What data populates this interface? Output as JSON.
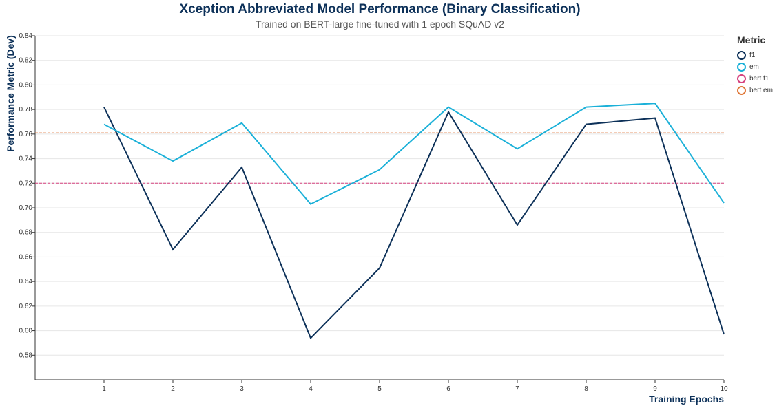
{
  "chart_data": {
    "type": "line",
    "title": "Xception Abbreviated Model Performance (Binary Classification)",
    "subtitle": "Trained on BERT-large fine-tuned with 1 epoch SQuAD v2",
    "xlabel": "Training Epochs",
    "ylabel": "Performance Metric (Dev)",
    "x": [
      1,
      2,
      3,
      4,
      5,
      6,
      7,
      8,
      9,
      10
    ],
    "xlim": [
      0,
      10
    ],
    "ylim": [
      0.56,
      0.84
    ],
    "yticks": [
      "0.58",
      "0.60",
      "0.62",
      "0.64",
      "0.66",
      "0.68",
      "0.70",
      "0.72",
      "0.74",
      "0.76",
      "0.78",
      "0.80",
      "0.82",
      "0.84"
    ],
    "grid": true,
    "legend_title": "Metric",
    "legend_position": "right",
    "series": [
      {
        "name": "f1",
        "color": "#0d3159",
        "style": "solid",
        "values": [
          0.782,
          0.666,
          0.733,
          0.594,
          0.651,
          0.778,
          0.686,
          0.768,
          0.773,
          0.597
        ]
      },
      {
        "name": "em",
        "color": "#1ab0d8",
        "style": "solid",
        "values": [
          0.768,
          0.738,
          0.769,
          0.703,
          0.731,
          0.782,
          0.748,
          0.782,
          0.785,
          0.704
        ]
      },
      {
        "name": "bert f1",
        "color": "#d6437f",
        "style": "dashed",
        "values": [
          0.72,
          0.72,
          0.72,
          0.72,
          0.72,
          0.72,
          0.72,
          0.72,
          0.72,
          0.72
        ]
      },
      {
        "name": "bert em",
        "color": "#e07a3c",
        "style": "dashed",
        "values": [
          0.761,
          0.761,
          0.761,
          0.761,
          0.761,
          0.761,
          0.761,
          0.761,
          0.761,
          0.761
        ]
      }
    ]
  }
}
